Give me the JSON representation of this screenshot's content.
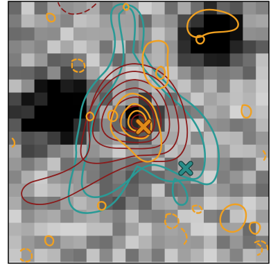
{
  "image": {
    "description_kind": "astronomical cutout with overlaid contours",
    "colors": {
      "teal_contour": "#2a9a96",
      "orange_contour": "#f0a020",
      "darkred_contour": "#8b1a1a",
      "marker_orange": "#e08a1a",
      "marker_teal": "#2a8c88"
    },
    "markers": [
      {
        "name": "orange-x-marker",
        "color": "#e08a1a"
      },
      {
        "name": "teal-x-marker",
        "color": "#2a8c88"
      }
    ]
  }
}
